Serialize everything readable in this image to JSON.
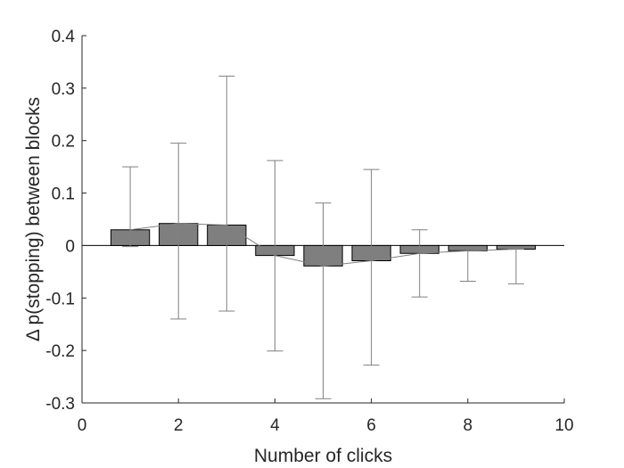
{
  "chart_data": {
    "type": "bar",
    "title": "",
    "xlabel": "Number of clicks",
    "ylabel": "Δ p(stopping) between blocks",
    "xlim": [
      0,
      10
    ],
    "ylim": [
      -0.3,
      0.4
    ],
    "xticks": [
      0,
      2,
      4,
      6,
      8,
      10
    ],
    "xtick_labels": [
      "0",
      "2",
      "4",
      "6",
      "8",
      "10"
    ],
    "yticks": [
      0.4,
      0.3,
      0.2,
      0.1,
      0,
      -0.1,
      -0.2,
      -0.3
    ],
    "ytick_labels": [
      "0.4",
      "0.3",
      "0.2",
      "0.1",
      "0",
      "-0.1",
      "-0.2",
      "-0.3"
    ],
    "grid": false,
    "series": [
      {
        "x": [
          1,
          2,
          3,
          4,
          5,
          6,
          7,
          8,
          9
        ],
        "values": [
          0.03,
          0.042,
          0.039,
          -0.019,
          -0.039,
          -0.029,
          -0.015,
          -0.01,
          -0.007
        ],
        "error_upper": [
          0.15,
          0.195,
          0.323,
          0.162,
          0.081,
          0.145,
          0.03,
          -0.007,
          -0.007
        ],
        "error_lower": [
          -0.002,
          -0.14,
          -0.125,
          -0.201,
          -0.292,
          -0.228,
          -0.098,
          -0.068,
          -0.073
        ]
      }
    ],
    "colors": {
      "bar_fill": "#7f7f7f",
      "bar_edge": "#000000",
      "errorbar": "#808080",
      "axis": "#262626"
    }
  }
}
